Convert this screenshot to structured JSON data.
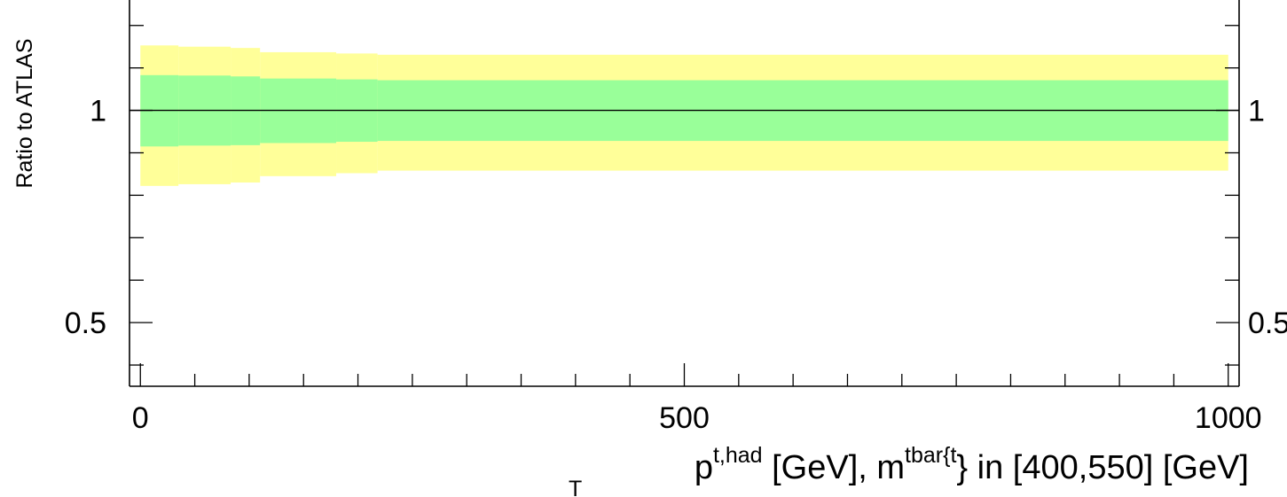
{
  "chart_data": {
    "type": "area",
    "ylabel": "Ratio to ATLAS",
    "xlabel": {
      "p_base": "p",
      "p_sup": "t,had",
      "p_sub": "T",
      "mid": " [GeV], m",
      "m_sup": "tbar{t",
      "tail": "} in [400,550] [GeV]"
    },
    "xlim": [
      -10,
      1010
    ],
    "ylim": [
      0.35,
      1.26
    ],
    "x_ticks": [
      {
        "value": 0,
        "label": "0"
      },
      {
        "value": 500,
        "label": "500"
      },
      {
        "value": 1000,
        "label": "1000"
      }
    ],
    "y_ticks_left": [
      {
        "value": 0.5,
        "label": "0.5"
      },
      {
        "value": 1,
        "label": "1"
      }
    ],
    "y_ticks_right": [
      {
        "value": 0.5,
        "label": "0.5"
      },
      {
        "value": 1,
        "label": "1"
      }
    ],
    "reference_line": 1.0,
    "bin_edges": [
      0,
      35,
      83,
      110,
      180,
      218,
      1000
    ],
    "series": [
      {
        "band": "outer",
        "color": "#ffff99",
        "lower": [
          0.822,
          0.826,
          0.83,
          0.845,
          0.852,
          0.858,
          0.808
        ],
        "upper": [
          1.153,
          1.15,
          1.147,
          1.137,
          1.134,
          1.131,
          1.155
        ]
      },
      {
        "band": "inner",
        "color": "#99ff99",
        "lower": [
          0.915,
          0.917,
          0.918,
          0.923,
          0.926,
          0.928,
          0.913
        ],
        "upper": [
          1.083,
          1.082,
          1.08,
          1.075,
          1.073,
          1.071,
          1.084
        ]
      }
    ],
    "grid": false
  }
}
